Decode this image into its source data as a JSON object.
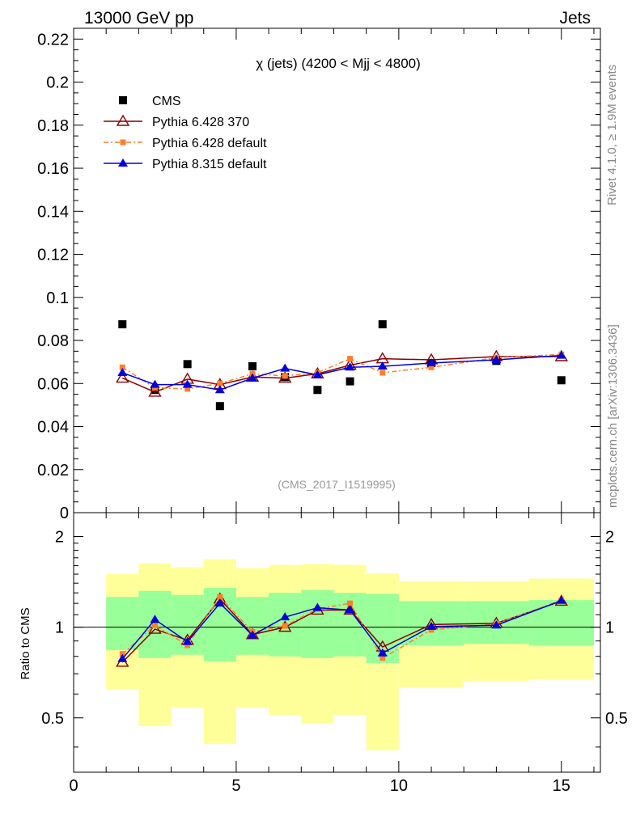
{
  "header": {
    "energy_label": "13000 GeV pp",
    "process_label": "Jets",
    "rivet_label": "Rivet 4.1.0, ≥ 1.9M events",
    "site_label": "mcplots.cern.ch [arXiv:1306.3436]",
    "analysis_label": "(CMS_2017_I1519995)"
  },
  "colors": {
    "cms": "#000000",
    "py6_370": "#8b0000",
    "py6_default": "#ff7f2a",
    "py8_default": "#0000dd",
    "band_inner": "#99ff99",
    "band_outer": "#ffff99"
  },
  "chart_data": [
    {
      "type": "scatter",
      "panel": "main",
      "title": "χ (jets) (4200 < Mjj < 4800)",
      "xlim": [
        0,
        16.2
      ],
      "ylim": [
        0,
        0.225
      ],
      "y_tick_labels": [
        "0",
        "0.02",
        "0.04",
        "0.06",
        "0.08",
        "0.1",
        "0.12",
        "0.14",
        "0.16",
        "0.18",
        "0.2",
        "0.22"
      ],
      "y_ticks": [
        0,
        0.02,
        0.04,
        0.06,
        0.08,
        0.1,
        0.12,
        0.14,
        0.16,
        0.18,
        0.2,
        0.22
      ],
      "legend": [
        "CMS",
        "Pythia 6.428 370",
        "Pythia 6.428 default",
        "Pythia 8.315 default"
      ],
      "legend_position": "top-left",
      "x": [
        1.5,
        2.5,
        3.5,
        4.5,
        5.5,
        6.5,
        7.5,
        8.5,
        9.5,
        11,
        13,
        15
      ],
      "series": [
        {
          "name": "CMS",
          "values": [
            0.0875,
            0.057,
            0.069,
            0.0495,
            0.068,
            0.063,
            0.057,
            0.061,
            0.0875,
            0.0695,
            0.0705,
            0.0615
          ]
        },
        {
          "name": "Pythia 6.428 370",
          "values": [
            0.0625,
            0.056,
            0.062,
            0.0595,
            0.063,
            0.0625,
            0.0645,
            0.0685,
            0.0715,
            0.071,
            0.0725,
            0.0725
          ]
        },
        {
          "name": "Pythia 6.428 default",
          "values": [
            0.0675,
            0.058,
            0.0575,
            0.06,
            0.0645,
            0.0635,
            0.065,
            0.0715,
            0.065,
            0.0675,
            0.072,
            0.0735
          ]
        },
        {
          "name": "Pythia 8.315 default",
          "values": [
            0.065,
            0.0595,
            0.0595,
            0.057,
            0.0625,
            0.067,
            0.064,
            0.0675,
            0.068,
            0.0695,
            0.071,
            0.073
          ]
        }
      ]
    },
    {
      "type": "line",
      "panel": "ratio",
      "ylabel": "Ratio to CMS",
      "xlim": [
        0,
        16.2
      ],
      "ylim": [
        0.33,
        2.4
      ],
      "y_scale": "log",
      "x_ticks": [
        0,
        5,
        10,
        15
      ],
      "x_tick_labels": [
        "0",
        "5",
        "10",
        "15"
      ],
      "y_ticks": [
        0.5,
        1,
        2
      ],
      "y_tick_labels": [
        "0.5",
        "1",
        "2"
      ],
      "band_edges": [
        1,
        2,
        3,
        4,
        5,
        6,
        7,
        8,
        9,
        10,
        12,
        14,
        16
      ],
      "band_inner_low": [
        0.84,
        0.79,
        0.81,
        0.77,
        0.81,
        0.8,
        0.79,
        0.8,
        0.76,
        0.87,
        0.88,
        0.87
      ],
      "band_inner_high": [
        1.26,
        1.32,
        1.28,
        1.35,
        1.26,
        1.3,
        1.33,
        1.3,
        1.29,
        1.22,
        1.22,
        1.23
      ],
      "band_outer_low": [
        0.62,
        0.47,
        0.54,
        0.41,
        0.54,
        0.51,
        0.48,
        0.51,
        0.39,
        0.63,
        0.66,
        0.67
      ],
      "band_outer_high": [
        1.5,
        1.63,
        1.58,
        1.68,
        1.57,
        1.61,
        1.62,
        1.61,
        1.51,
        1.42,
        1.42,
        1.45
      ],
      "x": [
        1.5,
        2.5,
        3.5,
        4.5,
        5.5,
        6.5,
        7.5,
        8.5,
        9.5,
        11,
        13,
        15
      ],
      "series": [
        {
          "name": "Pythia 6.428 370",
          "values": [
            0.765,
            0.985,
            0.905,
            1.24,
            0.945,
            1.0,
            1.14,
            1.14,
            0.86,
            1.02,
            1.03,
            1.22
          ]
        },
        {
          "name": "Pythia 6.428 default",
          "values": [
            0.815,
            1.015,
            0.87,
            1.26,
            0.965,
            1.01,
            1.15,
            1.2,
            0.79,
            0.98,
            1.025,
            1.23
          ]
        },
        {
          "name": "Pythia 8.315 default",
          "values": [
            0.785,
            1.06,
            0.895,
            1.2,
            0.94,
            1.08,
            1.16,
            1.14,
            0.82,
            1.005,
            1.015,
            1.225
          ]
        }
      ]
    }
  ]
}
